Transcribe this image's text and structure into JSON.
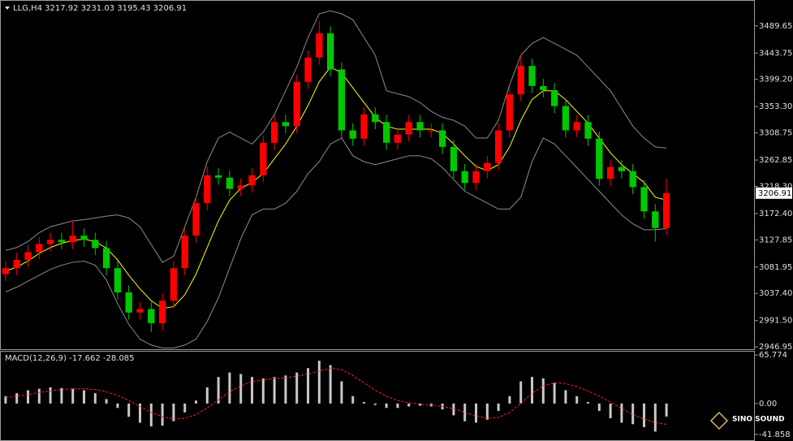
{
  "chart_data": [
    {
      "type": "candlestick",
      "symbol": "LLG,H4",
      "quote": [
        3217.92,
        3231.03,
        3195.43,
        3206.91
      ],
      "last_price": 3206.91,
      "up_color": "#ff0000",
      "down_color": "#00c800",
      "open": [
        3070,
        3080,
        3094,
        3107,
        3121,
        3128,
        3124,
        3135,
        3128,
        3114,
        3080,
        3039,
        3005,
        3011,
        2987,
        3025,
        3080,
        3135,
        3190,
        3237,
        3233,
        3214,
        3220,
        3237,
        3292,
        3327,
        3320,
        3395,
        3436,
        3477,
        3416,
        3313,
        3299,
        3340,
        3327,
        3292,
        3306,
        3327,
        3313,
        3313,
        3285,
        3244,
        3224,
        3244,
        3258,
        3313,
        3374,
        3422,
        3388,
        3381,
        3354,
        3313,
        3327,
        3299,
        3231,
        3251,
        3244,
        3217,
        3176,
        3148
      ],
      "high": [
        3092,
        3106,
        3119,
        3133,
        3140,
        3140,
        3160,
        3147,
        3140,
        3126,
        3092,
        3051,
        3023,
        3023,
        3037,
        3092,
        3147,
        3202,
        3252,
        3249,
        3245,
        3232,
        3249,
        3304,
        3339,
        3339,
        3407,
        3448,
        3498,
        3489,
        3428,
        3325,
        3352,
        3352,
        3339,
        3318,
        3339,
        3339,
        3325,
        3325,
        3297,
        3256,
        3256,
        3270,
        3325,
        3386,
        3440,
        3434,
        3400,
        3393,
        3366,
        3339,
        3339,
        3311,
        3263,
        3263,
        3256,
        3229,
        3188,
        3231
      ],
      "low": [
        3058,
        3068,
        3082,
        3095,
        3109,
        3112,
        3112,
        3116,
        3102,
        3068,
        3027,
        2993,
        2993,
        2972,
        2975,
        3013,
        3068,
        3123,
        3178,
        3221,
        3202,
        3202,
        3208,
        3225,
        3280,
        3308,
        3308,
        3383,
        3424,
        3404,
        3301,
        3287,
        3287,
        3315,
        3280,
        3280,
        3294,
        3301,
        3301,
        3273,
        3232,
        3212,
        3212,
        3232,
        3246,
        3301,
        3362,
        3376,
        3369,
        3342,
        3301,
        3301,
        3287,
        3219,
        3219,
        3232,
        3205,
        3164,
        3125,
        3136
      ],
      "close": [
        3080,
        3094,
        3107,
        3121,
        3128,
        3124,
        3135,
        3128,
        3114,
        3080,
        3039,
        3005,
        3011,
        2987,
        3025,
        3080,
        3135,
        3190,
        3237,
        3233,
        3214,
        3220,
        3237,
        3292,
        3327,
        3320,
        3395,
        3436,
        3477,
        3416,
        3313,
        3299,
        3340,
        3327,
        3292,
        3306,
        3327,
        3313,
        3313,
        3285,
        3244,
        3224,
        3244,
        3258,
        3313,
        3374,
        3422,
        3388,
        3381,
        3354,
        3313,
        3327,
        3299,
        3231,
        3251,
        3244,
        3217,
        3176,
        3148,
        3206.91
      ],
      "overlays": [
        {
          "color": "#ffff00",
          "values": [
            3075,
            3082,
            3092,
            3105,
            3115,
            3122,
            3127,
            3129,
            3125,
            3114,
            3094,
            3068,
            3045,
            3025,
            3012,
            3015,
            3035,
            3070,
            3115,
            3160,
            3195,
            3215,
            3225,
            3240,
            3265,
            3290,
            3320,
            3355,
            3395,
            3420,
            3410,
            3385,
            3360,
            3335,
            3320,
            3315,
            3315,
            3315,
            3315,
            3308,
            3290,
            3270,
            3252,
            3245,
            3255,
            3285,
            3330,
            3365,
            3380,
            3380,
            3365,
            3345,
            3325,
            3300,
            3275,
            3255,
            3240,
            3225,
            3200,
            3195
          ]
        },
        {
          "color": "#8c8c8c",
          "values": [
            3110,
            3115,
            3125,
            3140,
            3150,
            3155,
            3160,
            3162,
            3165,
            3168,
            3170,
            3165,
            3150,
            3120,
            3090,
            3100,
            3150,
            3200,
            3260,
            3300,
            3310,
            3300,
            3290,
            3310,
            3340,
            3380,
            3420,
            3470,
            3510,
            3515,
            3510,
            3500,
            3470,
            3440,
            3380,
            3375,
            3370,
            3360,
            3345,
            3335,
            3330,
            3320,
            3300,
            3300,
            3330,
            3390,
            3440,
            3460,
            3470,
            3460,
            3450,
            3440,
            3420,
            3400,
            3380,
            3350,
            3320,
            3300,
            3285,
            3283
          ]
        },
        {
          "color": "#8c8c8c",
          "values": [
            3040,
            3048,
            3058,
            3068,
            3078,
            3085,
            3090,
            3092,
            3085,
            3060,
            3020,
            2985,
            2960,
            2950,
            2945,
            2945,
            2950,
            2960,
            2990,
            3030,
            3080,
            3130,
            3170,
            3180,
            3180,
            3190,
            3210,
            3240,
            3260,
            3290,
            3300,
            3270,
            3260,
            3255,
            3260,
            3265,
            3270,
            3270,
            3265,
            3250,
            3230,
            3210,
            3200,
            3190,
            3180,
            3180,
            3200,
            3260,
            3300,
            3290,
            3270,
            3250,
            3230,
            3210,
            3190,
            3170,
            3155,
            3145,
            3145,
            3147
          ]
        }
      ],
      "ylim": [
        2943,
        3532
      ],
      "yticks": [
        3489.65,
        3443.75,
        {
          "value": 3399.2,
          "label": "3399.20"
        },
        {
          "value": 3353.3,
          "label": "3353.30"
        },
        3308.75,
        3262.85,
        {
          "value": 3218.3,
          "label": "3218.30"
        },
        {
          "value": 3172.4,
          "label": "3172.40"
        },
        3127.85,
        3081.95,
        {
          "value": 3037.4,
          "label": "3037.40"
        },
        {
          "value": 2991.5,
          "label": "2991.50"
        },
        2946.95
      ]
    },
    {
      "type": "macd",
      "label": "MACD(12,26,9)",
      "readout": [
        -17.662,
        -28.085
      ],
      "hist_color": "#c8c8c8",
      "signal_color": "#ff2020",
      "values": [
        10,
        14,
        18,
        20,
        22,
        21,
        20,
        18,
        14,
        6,
        -6,
        -18,
        -26,
        -31,
        -30,
        -24,
        -12,
        4,
        22,
        36,
        42,
        40,
        36,
        34,
        36,
        38,
        42,
        48,
        58,
        52,
        30,
        10,
        2,
        -2,
        -6,
        -6,
        -4,
        -3,
        -4,
        -8,
        -16,
        -24,
        -26,
        -22,
        -10,
        10,
        30,
        36,
        34,
        28,
        18,
        10,
        2,
        -10,
        -20,
        -26,
        -28,
        -32,
        -38,
        -17.662
      ],
      "signal": [
        8,
        10,
        12,
        15,
        17,
        19,
        20,
        20,
        19,
        16,
        11,
        4,
        -4,
        -12,
        -18,
        -21,
        -20,
        -15,
        -6,
        5,
        16,
        24,
        30,
        32,
        34,
        35,
        37,
        40,
        44,
        48,
        46,
        38,
        28,
        18,
        10,
        4,
        1,
        -1,
        -2,
        -4,
        -7,
        -12,
        -17,
        -20,
        -19,
        -12,
        0,
        14,
        24,
        28,
        27,
        23,
        17,
        10,
        2,
        -7,
        -15,
        -21,
        -26,
        -28.085
      ],
      "ylim": [
        -49.7,
        70.3
      ],
      "yticks": [
        65.774,
        {
          "value": 0,
          "label": "0.00"
        },
        -41.858
      ]
    }
  ],
  "watermark": "SINO SOUND"
}
